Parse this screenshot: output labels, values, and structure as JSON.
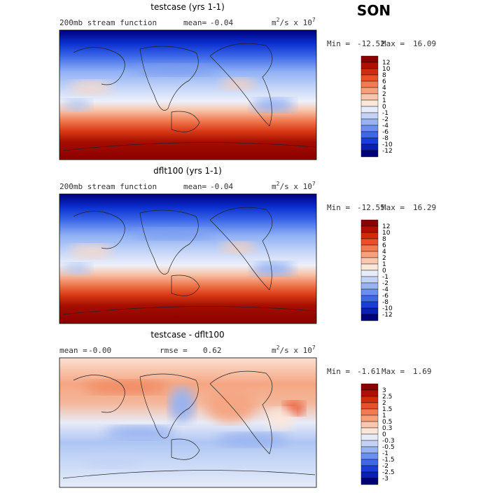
{
  "season": "SON",
  "panels": [
    {
      "title": "testcase (yrs 1-1)",
      "subtitle": [
        "200mb stream function",
        "mean=",
        "-0.04"
      ],
      "units": [
        "m",
        "2",
        "/s x 10",
        "7"
      ],
      "min_label": "Min =",
      "min": "-12.52",
      "max_label": "Max =",
      "max": "16.09",
      "levels": [
        "12",
        "10",
        "8",
        "6",
        "4",
        "2",
        "1",
        "0",
        "-1",
        "-2",
        "-4",
        "-6",
        "-8",
        "-10",
        "-12"
      ]
    },
    {
      "title": "dflt100 (yrs 1-1)",
      "subtitle": [
        "200mb stream function",
        "mean=",
        "-0.04"
      ],
      "units": [
        "m",
        "2",
        "/s x 10",
        "7"
      ],
      "min_label": "Min =",
      "min": "-12.55",
      "max_label": "Max =",
      "max": "16.29",
      "levels": [
        "12",
        "10",
        "8",
        "6",
        "4",
        "2",
        "1",
        "0",
        "-1",
        "-2",
        "-4",
        "-6",
        "-8",
        "-10",
        "-12"
      ]
    },
    {
      "title": "testcase - dflt100",
      "subtitle": [
        "mean =",
        "-0.00",
        "rmse =",
        "0.62"
      ],
      "units": [
        "m",
        "2",
        "/s x 10",
        "7"
      ],
      "min_label": "Min =",
      "min": "-1.61",
      "max_label": "Max =",
      "max": "1.69",
      "levels": [
        "3",
        "2.5",
        "2",
        "1.5",
        "1",
        "0.5",
        "0.3",
        "0",
        "-0.3",
        "-0.5",
        "-1",
        "-1.5",
        "-2",
        "-2.5",
        "-3"
      ]
    }
  ]
}
